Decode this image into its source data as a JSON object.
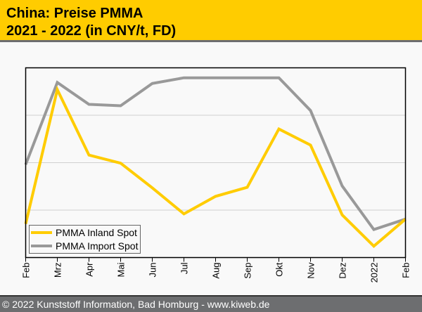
{
  "header": {
    "title_line1": "China: Preise PMMA",
    "title_line2": "2021 - 2022 (in CNY/t, FD)"
  },
  "footer": {
    "copyright": "© 2022 Kunststoff Information, Bad Homburg - www.kiweb.de"
  },
  "colors": {
    "header_bg": "#ffcc00",
    "footer_bg": "#6d6e70",
    "inland": "#ffcc00",
    "import": "#999999"
  },
  "chart_data": {
    "type": "line",
    "title": "China: Preise PMMA 2021 - 2022 (in CNY/t, FD)",
    "xlabel": "",
    "ylabel": "",
    "y_units": "relative (no y-axis tick labels shown; gridlines at 1, 2, 3)",
    "ylim": [
      0,
      4
    ],
    "grid": true,
    "legend_position": "bottom-left",
    "categories": [
      "Feb",
      "Mrz",
      "Apr",
      "Mai",
      "Jun",
      "Jul",
      "Aug",
      "Sep",
      "Okt",
      "Nov",
      "Dez",
      "2022",
      "Feb"
    ],
    "series": [
      {
        "name": "PMMA Inland Spot",
        "color": "#ffcc00",
        "values": [
          0.71,
          3.54,
          2.16,
          1.99,
          1.47,
          0.92,
          1.29,
          1.48,
          2.71,
          2.37,
          0.9,
          0.24,
          0.81
        ]
      },
      {
        "name": "PMMA Import Spot",
        "color": "#999999",
        "values": [
          1.96,
          3.69,
          3.23,
          3.2,
          3.67,
          3.79,
          3.79,
          3.79,
          3.79,
          3.1,
          1.51,
          0.59,
          0.81
        ]
      }
    ]
  }
}
